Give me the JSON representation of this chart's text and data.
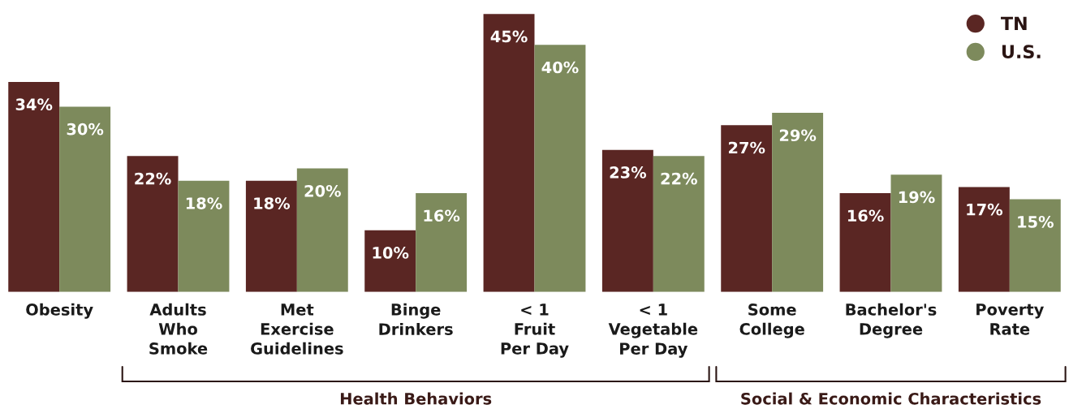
{
  "chart_data": {
    "type": "bar",
    "categories": [
      "Obesity",
      "Adults\nWho\nSmoke",
      "Met\nExercise\nGuidelines",
      "Binge\nDrinkers",
      "< 1\nFruit\nPer Day",
      "< 1\nVegetable\nPer Day",
      "Some\nCollege",
      "Bachelor's\nDegree",
      "Poverty\nRate"
    ],
    "series": [
      {
        "name": "TN",
        "color": "#5a2623",
        "values": [
          34,
          22,
          18,
          10,
          45,
          23,
          27,
          16,
          17
        ],
        "value_labels": [
          "34%",
          "22%",
          "18%",
          "10%",
          "45%",
          "23%",
          "27%",
          "16%",
          "17%"
        ]
      },
      {
        "name": "U.S.",
        "color": "#7d8a5c",
        "values": [
          30,
          18,
          20,
          16,
          40,
          22,
          29,
          19,
          15
        ],
        "value_labels": [
          "30%",
          "18%",
          "20%",
          "16%",
          "40%",
          "22%",
          "29%",
          "19%",
          "15%"
        ]
      }
    ],
    "annotations": [
      "Health Behaviors",
      "Social & Economic Characteristics"
    ],
    "legend": "top right",
    "grid": false
  }
}
